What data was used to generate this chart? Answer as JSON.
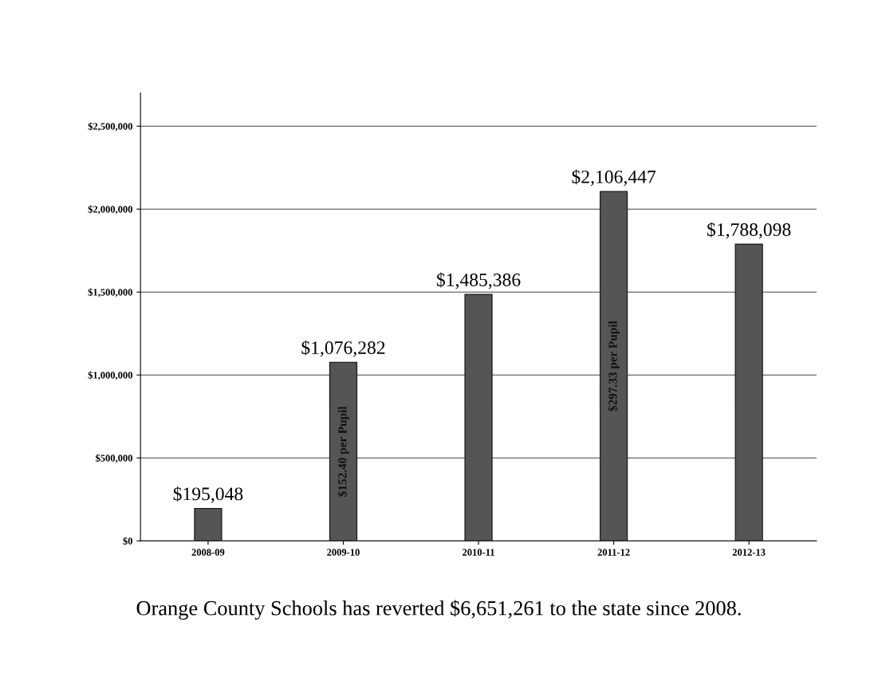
{
  "chart_data": {
    "type": "bar",
    "categories": [
      "2008-09",
      "2009-10",
      "2010-11",
      "2011-12",
      "2012-13"
    ],
    "values": [
      195048,
      1076282,
      1485386,
      2106447,
      1788098
    ],
    "color": "#555555",
    "value_labels": [
      "$195,048",
      "$1,076,282",
      "$1,485,386",
      "$2,106,447",
      "$1,788,098"
    ],
    "ylim": [
      0,
      2700000
    ],
    "yticks": [
      {
        "value": 0,
        "label": "$0"
      },
      {
        "value": 500000,
        "label": "$500,000"
      },
      {
        "value": 1000000,
        "label": "$1,000,000"
      },
      {
        "value": 1500000,
        "label": "$1,500,000"
      },
      {
        "value": 2000000,
        "label": "$2,000,000"
      },
      {
        "value": 2500000,
        "label": "$2,500,000"
      }
    ],
    "grid": "y",
    "annotations": [
      "$152.40 per Pupil",
      "$297.33 per Pupil",
      "Orange County Schools has reverted $6,651,261 to the state since 2008."
    ]
  }
}
